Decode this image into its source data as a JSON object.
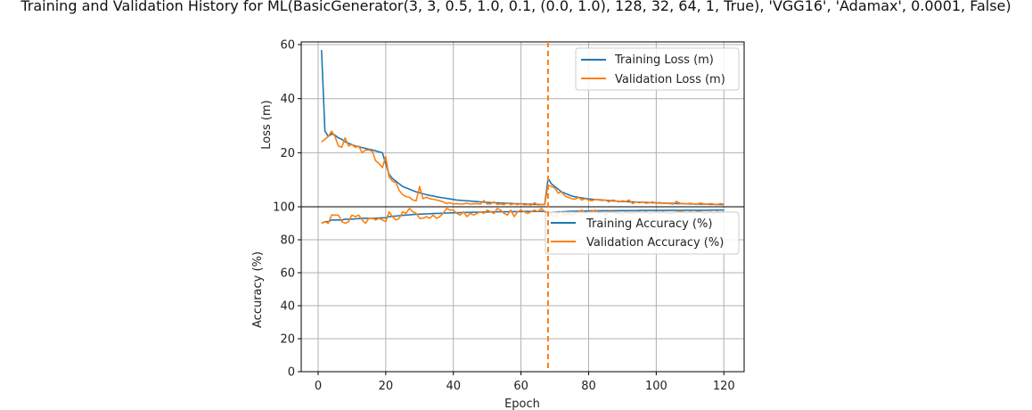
{
  "chart_data": {
    "type": "line",
    "title": "Training and Validation History for ML(BasicGenerator(3, 3, 0.5, 1.0, 0.1, (0.0, 1.0), 128, 32, 64, 1, True), 'VGG16', 'Adamax', 0.0001, False)",
    "xlabel": "Epoch",
    "xlim": [
      -5,
      126
    ],
    "xticks": [
      0,
      20,
      40,
      60,
      80,
      100,
      120
    ],
    "marker_epoch": 68,
    "colors": {
      "training": "#1f77b4",
      "validation": "#ff7f0e",
      "marker": "#ff7f0e"
    },
    "panels": [
      {
        "id": "loss",
        "ylabel": "Loss (m)",
        "ylim": [
          0,
          61
        ],
        "yticks": [
          0,
          20,
          40,
          60
        ],
        "legend_position": "top-right",
        "series": [
          {
            "name": "Training Loss (m)",
            "color": "#1f77b4",
            "x": [
              1,
              2,
              3,
              4,
              5,
              6,
              7,
              8,
              9,
              10,
              11,
              12,
              13,
              14,
              15,
              16,
              17,
              18,
              19,
              20,
              21,
              22,
              23,
              24,
              25,
              26,
              27,
              28,
              29,
              30,
              31,
              32,
              33,
              34,
              35,
              36,
              37,
              38,
              39,
              40,
              41,
              42,
              43,
              44,
              45,
              46,
              47,
              48,
              49,
              50,
              51,
              52,
              53,
              54,
              55,
              56,
              57,
              58,
              59,
              60,
              61,
              62,
              63,
              64,
              65,
              66,
              67,
              68,
              69,
              70,
              71,
              72,
              73,
              74,
              75,
              76,
              77,
              78,
              79,
              80,
              81,
              82,
              83,
              84,
              85,
              86,
              87,
              88,
              89,
              90,
              91,
              92,
              93,
              94,
              95,
              96,
              97,
              98,
              99,
              100,
              101,
              102,
              103,
              104,
              105,
              106,
              107,
              108,
              109,
              110,
              111,
              112,
              113,
              114,
              115,
              116,
              117,
              118,
              119,
              120
            ],
            "y": [
              58,
              28,
              26,
              27,
              26.5,
              25.5,
              25,
              24,
              23.5,
              23,
              22.5,
              22.2,
              21.9,
              21.6,
              21.3,
              21.0,
              20.7,
              20.3,
              20.0,
              16,
              12,
              10.5,
              9.5,
              8.5,
              7.5,
              7.0,
              6.5,
              6.0,
              5.5,
              5.2,
              4.8,
              4.5,
              4.2,
              4.0,
              3.7,
              3.5,
              3.3,
              3.1,
              2.9,
              2.7,
              2.5,
              2.4,
              2.3,
              2.2,
              2.1,
              2.0,
              1.9,
              1.8,
              1.7,
              1.6,
              1.55,
              1.5,
              1.45,
              1.4,
              1.35,
              1.3,
              1.25,
              1.2,
              1.15,
              1.1,
              1.05,
              1.0,
              0.95,
              0.9,
              0.9,
              0.85,
              0.85,
              10.5,
              8.5,
              7.5,
              6.5,
              5.5,
              5.0,
              4.5,
              4.0,
              3.7,
              3.5,
              3.3,
              3.1,
              2.9,
              2.8,
              2.7,
              2.6,
              2.5,
              2.4,
              2.3,
              2.2,
              2.1,
              2.0,
              1.95,
              1.9,
              1.85,
              1.8,
              1.75,
              1.7,
              1.65,
              1.6,
              1.55,
              1.5,
              1.45,
              1.4,
              1.35,
              1.3,
              1.3,
              1.25,
              1.2,
              1.2,
              1.15,
              1.1,
              1.1,
              1.05,
              1.0,
              1.0,
              0.95,
              0.95,
              0.9,
              0.9,
              0.85,
              0.85,
              0.8
            ]
          },
          {
            "name": "Validation Loss (m)",
            "color": "#ff7f0e",
            "x": [
              1,
              2,
              3,
              4,
              5,
              6,
              7,
              8,
              9,
              10,
              11,
              12,
              13,
              14,
              15,
              16,
              17,
              18,
              19,
              20,
              21,
              22,
              23,
              24,
              25,
              26,
              27,
              28,
              29,
              30,
              31,
              32,
              33,
              34,
              35,
              36,
              37,
              38,
              39,
              40,
              41,
              42,
              43,
              44,
              45,
              46,
              47,
              48,
              49,
              50,
              51,
              52,
              53,
              54,
              55,
              56,
              57,
              58,
              59,
              60,
              61,
              62,
              63,
              64,
              65,
              66,
              67,
              68,
              69,
              70,
              71,
              72,
              73,
              74,
              75,
              76,
              77,
              78,
              79,
              80,
              81,
              82,
              83,
              84,
              85,
              86,
              87,
              88,
              89,
              90,
              91,
              92,
              93,
              94,
              95,
              96,
              97,
              98,
              99,
              100,
              101,
              102,
              103,
              104,
              105,
              106,
              107,
              108,
              109,
              110,
              111,
              112,
              113,
              114,
              115,
              116,
              117,
              118,
              119,
              120
            ],
            "y": [
              24,
              25,
              26,
              28,
              26,
              22.5,
              22,
              25.5,
              22.5,
              23,
              22,
              22.5,
              20,
              21,
              21,
              20.5,
              17,
              16,
              14.5,
              18.5,
              11,
              9.5,
              9,
              6,
              4.5,
              3.8,
              3.5,
              2.5,
              2.2,
              7.5,
              3,
              3.5,
              3,
              2.8,
              2.5,
              2.2,
              1.8,
              1.2,
              1.5,
              1,
              1.2,
              1.0,
              1.1,
              1.3,
              1.0,
              1.1,
              1.2,
              1.0,
              2.3,
              1.0,
              1.1,
              1.8,
              0.9,
              1.1,
              0.8,
              1.5,
              0.8,
              1.2,
              0.8,
              1.3,
              0.7,
              0.9,
              0.6,
              1.5,
              0.7,
              0.8,
              0.8,
              8,
              7.5,
              7,
              5,
              5.5,
              4,
              3.5,
              3,
              2.8,
              3.5,
              2.5,
              3,
              2.5,
              2.2,
              2.8,
              2.5,
              2.3,
              2.5,
              1.8,
              2.5,
              2.2,
              1.8,
              2.2,
              1.9,
              2.5,
              1.2,
              1.8,
              1.5,
              1.8,
              1.3,
              1.5,
              1.8,
              1.2,
              1.6,
              1.3,
              1.4,
              1.2,
              1.0,
              2.0,
              1.3,
              1.2,
              1.1,
              1.3,
              1.1,
              0.9,
              1.4,
              1.1,
              0.9,
              1.2,
              1.0,
              0.8,
              1.2,
              1.0
            ]
          }
        ]
      },
      {
        "id": "accuracy",
        "ylabel": "Accuracy (%)",
        "ylim": [
          0,
          100
        ],
        "yticks": [
          0,
          20,
          40,
          60,
          80,
          100
        ],
        "legend_position": "top-right",
        "series": [
          {
            "name": "Training Accuracy (%)",
            "color": "#1f77b4",
            "x": [
              1,
              2,
              3,
              4,
              5,
              6,
              7,
              8,
              9,
              10,
              11,
              12,
              13,
              14,
              15,
              16,
              17,
              18,
              19,
              20,
              21,
              22,
              23,
              24,
              25,
              26,
              27,
              28,
              29,
              30,
              31,
              32,
              33,
              34,
              35,
              36,
              37,
              38,
              39,
              40,
              41,
              42,
              43,
              44,
              45,
              46,
              47,
              48,
              49,
              50,
              51,
              52,
              53,
              54,
              55,
              56,
              57,
              58,
              59,
              60,
              61,
              62,
              63,
              64,
              65,
              66,
              67,
              68,
              69,
              70,
              71,
              72,
              73,
              74,
              75,
              76,
              77,
              78,
              79,
              80,
              81,
              82,
              83,
              84,
              85,
              86,
              87,
              88,
              89,
              90,
              91,
              92,
              93,
              94,
              95,
              96,
              97,
              98,
              99,
              100,
              101,
              102,
              103,
              104,
              105,
              106,
              107,
              108,
              109,
              110,
              111,
              112,
              113,
              114,
              115,
              116,
              117,
              118,
              119,
              120
            ],
            "y": [
              90,
              91,
              91,
              92,
              92,
              92,
              92,
              92.5,
              92.5,
              92.5,
              92.7,
              92.8,
              93,
              93,
              93,
              93,
              93.1,
              93.2,
              93.3,
              93.3,
              94,
              94.2,
              94.4,
              94.6,
              94.8,
              95,
              95.1,
              95.3,
              95.4,
              95.5,
              95.6,
              95.7,
              95.8,
              95.9,
              96,
              96,
              96.1,
              96.2,
              96.3,
              96.3,
              96.4,
              96.5,
              96.5,
              96.6,
              96.6,
              96.7,
              96.7,
              96.8,
              96.8,
              96.8,
              96.9,
              96.9,
              97,
              97,
              97,
              97,
              97.1,
              97.1,
              97.1,
              97.1,
              97.2,
              97.2,
              97.2,
              97.2,
              97.2,
              97.2,
              97.2,
              96,
              96.5,
              96.7,
              96.9,
              97,
              97.1,
              97.2,
              97.3,
              97.3,
              97.4,
              97.4,
              97.4,
              97.5,
              97.5,
              97.5,
              97.5,
              97.6,
              97.6,
              97.6,
              97.6,
              97.6,
              97.7,
              97.7,
              97.7,
              97.7,
              97.7,
              97.7,
              97.8,
              97.8,
              97.8,
              97.8,
              97.8,
              97.8,
              97.8,
              97.8,
              97.8,
              97.9,
              97.9,
              97.9,
              97.9,
              97.9,
              97.9,
              97.9,
              97.9,
              97.9,
              97.9,
              97.9,
              97.9,
              98,
              98,
              98,
              98,
              98
            ]
          },
          {
            "name": "Validation Accuracy (%)",
            "color": "#ff7f0e",
            "x": [
              1,
              2,
              3,
              4,
              5,
              6,
              7,
              8,
              9,
              10,
              11,
              12,
              13,
              14,
              15,
              16,
              17,
              18,
              19,
              20,
              21,
              22,
              23,
              24,
              25,
              26,
              27,
              28,
              29,
              30,
              31,
              32,
              33,
              34,
              35,
              36,
              37,
              38,
              39,
              40,
              41,
              42,
              43,
              44,
              45,
              46,
              47,
              48,
              49,
              50,
              51,
              52,
              53,
              54,
              55,
              56,
              57,
              58,
              59,
              60,
              61,
              62,
              63,
              64,
              65,
              66,
              67,
              68,
              69,
              70,
              71,
              72,
              73,
              74,
              75,
              76,
              77,
              78,
              79,
              80,
              81,
              82,
              83,
              84,
              85,
              86,
              87,
              88,
              89,
              90,
              91,
              92,
              93,
              94,
              95,
              96,
              97,
              98,
              99,
              100,
              101,
              102,
              103,
              104,
              105,
              106,
              107,
              108,
              109,
              110,
              111,
              112,
              113,
              114,
              115,
              116,
              117,
              118,
              119,
              120
            ],
            "y": [
              90,
              91,
              90,
              95,
              95,
              95,
              91,
              90,
              91,
              95,
              94,
              95,
              92,
              90,
              93,
              93,
              92,
              93,
              92,
              91,
              97,
              94,
              92,
              93,
              97,
              96,
              99,
              97,
              96,
              93,
              93,
              94,
              93,
              95,
              93,
              94,
              96,
              99,
              98,
              98,
              96,
              95,
              97,
              94,
              96,
              95,
              96,
              97,
              96,
              98,
              97,
              96,
              99,
              98,
              96,
              95,
              98,
              94,
              97,
              98,
              97,
              96,
              97,
              98,
              97,
              99,
              97,
              96,
              95,
              94,
              96,
              97,
              95,
              96,
              95,
              96,
              97,
              98,
              96,
              97,
              97,
              98,
              96,
              97,
              95,
              97,
              97,
              96,
              96,
              95,
              97,
              96,
              96,
              96,
              97,
              96,
              97,
              96,
              96,
              97,
              96,
              97,
              96,
              96,
              96,
              97,
              97,
              97,
              96,
              97,
              96,
              97,
              97,
              96,
              96,
              97,
              96,
              97,
              96,
              97
            ]
          }
        ]
      }
    ]
  }
}
